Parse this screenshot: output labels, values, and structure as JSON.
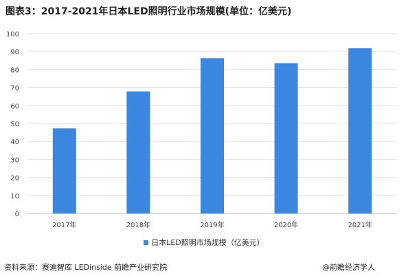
{
  "page": {
    "title": "图表3：2017-2021年日本LED照明行业市场规模(单位：亿美元)",
    "source": "资料来源：赛迪智库 LEDinside 前瞻产业研究院",
    "brand": "@前瞻经济学人"
  },
  "chart_data": {
    "type": "bar",
    "title": "图表3：2017-2021年日本LED照明行业市场规模(单位：亿美元)",
    "categories": [
      "2017年",
      "2018年",
      "2019年",
      "2020年",
      "2021年"
    ],
    "series": [
      {
        "name": "日本LED照明市场规模（亿美元）",
        "values": [
          47.3,
          67.8,
          86.3,
          83.5,
          91.9
        ]
      }
    ],
    "ylim": [
      0,
      100
    ],
    "yticks": [
      0,
      10,
      20,
      30,
      40,
      50,
      60,
      70,
      80,
      90,
      100
    ],
    "grid": true,
    "legend": "bottom",
    "color": "#3a86e0"
  }
}
